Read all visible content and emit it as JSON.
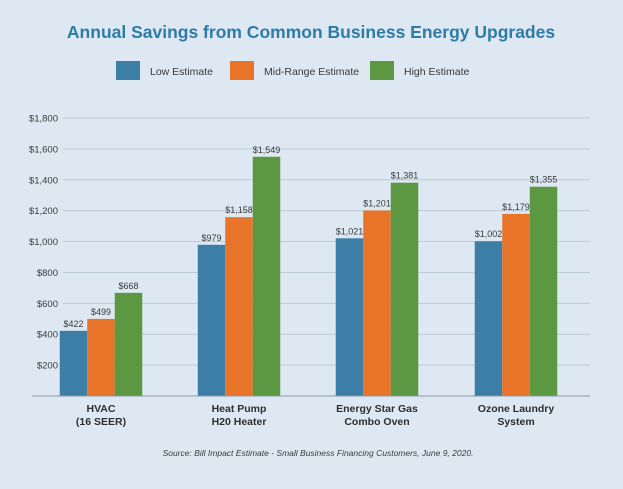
{
  "chart_data": {
    "type": "bar",
    "title": "Annual Savings from Common Business Energy Upgrades",
    "categories": [
      [
        "HVAC",
        "(16 SEER)"
      ],
      [
        "Heat Pump",
        "H20 Heater"
      ],
      [
        "Energy Star Gas",
        "Combo Oven"
      ],
      [
        "Ozone Laundry",
        "System"
      ]
    ],
    "series": [
      {
        "name": "Low Estimate",
        "color": "#3d7ea6",
        "values": [
          422,
          979,
          1021,
          1002
        ],
        "labels": [
          "$422",
          "$979",
          "$1,021",
          "$1,002"
        ]
      },
      {
        "name": "Mid-Range Estimate",
        "color": "#e8742a",
        "values": [
          499,
          1158,
          1201,
          1179
        ],
        "labels": [
          "$499",
          "$1,158",
          "$1,201",
          "$1,179"
        ]
      },
      {
        "name": "High Estimate",
        "color": "#5c9741",
        "values": [
          668,
          1549,
          1381,
          1355
        ],
        "labels": [
          "$668",
          "$1,549",
          "$1,381",
          "$1,355"
        ]
      }
    ],
    "ylim": [
      0,
      1800
    ],
    "yticks": [
      200,
      400,
      600,
      800,
      1000,
      1200,
      1400,
      1600,
      1800
    ],
    "ytick_labels": [
      "$200",
      "$400",
      "$600",
      "$800",
      "$1,000",
      "$1,200",
      "$1,400",
      "$1,600",
      "$1,800"
    ],
    "grid": true,
    "legend": "top-center",
    "source_note": "Source: Bill Impact Estimate - Small Business Financing Customers, June 9, 2020.",
    "colors": {
      "background": "#dde8f2",
      "title": "#2e7ba6",
      "grid": "#bccbd8",
      "axis": "#8a98a6",
      "text": "#3a3a3a"
    }
  }
}
